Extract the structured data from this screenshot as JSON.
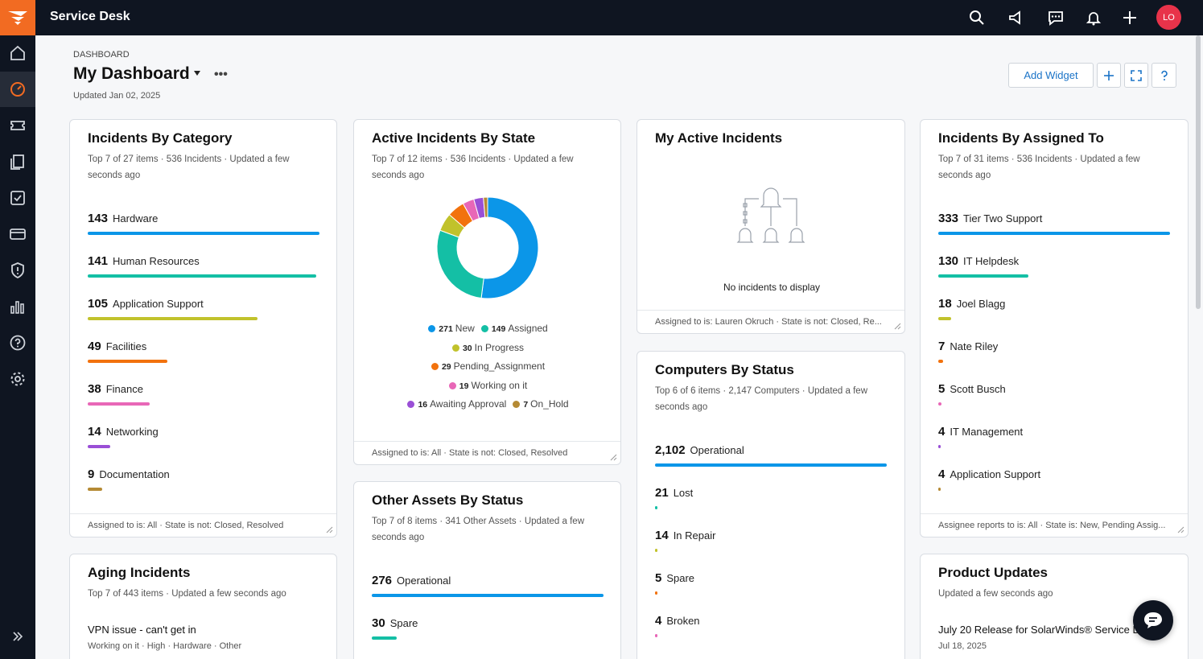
{
  "app": {
    "title": "Service Desk",
    "avatar_initials": "LO"
  },
  "header": {
    "breadcrumb": "DASHBOARD",
    "title": "My Dashboard",
    "more": "•••",
    "updated": "Updated Jan 02, 2025",
    "add_widget_label": "Add Widget"
  },
  "colors": {
    "accent": "#f26b22",
    "nav_bg": "#0f1521",
    "link": "#1a73c7",
    "blue": "#0b96e8",
    "teal": "#14bfa5",
    "olive": "#c1c22b",
    "orange": "#f2720d",
    "pink": "#e867b7",
    "purple": "#9a4fd6",
    "brown": "#b58a34"
  },
  "widgets": {
    "incidents_by_category": {
      "title": "Incidents By Category",
      "subtitle": "Top 7 of 27 items · 536 Incidents · Updated a few seconds ago",
      "rows": [
        {
          "value": "143",
          "label": "Hardware",
          "fraction": 1.0,
          "color": "#0b96e8"
        },
        {
          "value": "141",
          "label": "Human Resources",
          "fraction": 0.986,
          "color": "#14bfa5"
        },
        {
          "value": "105",
          "label": "Application Support",
          "fraction": 0.734,
          "color": "#c1c22b"
        },
        {
          "value": "49",
          "label": "Facilities",
          "fraction": 0.343,
          "color": "#f2720d"
        },
        {
          "value": "38",
          "label": "Finance",
          "fraction": 0.266,
          "color": "#e867b7"
        },
        {
          "value": "14",
          "label": "Networking",
          "fraction": 0.098,
          "color": "#9a4fd6"
        },
        {
          "value": "9",
          "label": "Documentation",
          "fraction": 0.063,
          "color": "#b58a34"
        }
      ],
      "footer": "Assigned to is: All · State is not: Closed, Resolved"
    },
    "active_by_state": {
      "title": "Active Incidents By State",
      "subtitle": "Top 7 of 12 items · 536 Incidents · Updated a few seconds ago",
      "footer": "Assigned to is: All · State is not: Closed, Resolved"
    },
    "my_active": {
      "title": "My Active Incidents",
      "empty_text": "No incidents to display",
      "footer": "Assigned to is: Lauren Okruch · State is not: Closed, Re..."
    },
    "by_assigned_to": {
      "title": "Incidents By Assigned To",
      "subtitle": "Top 7 of 31 items · 536 Incidents · Updated a few seconds ago",
      "rows": [
        {
          "value": "333",
          "label": "Tier Two Support",
          "fraction": 1.0,
          "color": "#0b96e8"
        },
        {
          "value": "130",
          "label": "IT Helpdesk",
          "fraction": 0.39,
          "color": "#14bfa5"
        },
        {
          "value": "18",
          "label": "Joel Blagg",
          "fraction": 0.054,
          "color": "#c1c22b"
        },
        {
          "value": "7",
          "label": "Nate Riley",
          "fraction": 0.021,
          "color": "#f2720d"
        },
        {
          "value": "5",
          "label": "Scott Busch",
          "fraction": 0.015,
          "color": "#e867b7"
        },
        {
          "value": "4",
          "label": "IT Management",
          "fraction": 0.012,
          "color": "#9a4fd6"
        },
        {
          "value": "4",
          "label": "Application Support",
          "fraction": 0.012,
          "color": "#b58a34"
        }
      ],
      "footer": "Assignee reports to is: All · State is: New, Pending Assig..."
    },
    "computers_by_status": {
      "title": "Computers By Status",
      "subtitle": "Top 6 of 6 items · 2,147 Computers · Updated a few seconds ago",
      "rows": [
        {
          "value": "2,102",
          "label": "Operational",
          "fraction": 1.0,
          "color": "#0b96e8"
        },
        {
          "value": "21",
          "label": "Lost",
          "fraction": 0.01,
          "color": "#14bfa5"
        },
        {
          "value": "14",
          "label": "In Repair",
          "fraction": 0.007,
          "color": "#c1c22b"
        },
        {
          "value": "5",
          "label": "Spare",
          "fraction": 0.002,
          "color": "#f2720d"
        },
        {
          "value": "4",
          "label": "Broken",
          "fraction": 0.002,
          "color": "#e867b7"
        }
      ]
    },
    "other_assets": {
      "title": "Other Assets By Status",
      "subtitle": "Top 7 of 8 items · 341 Other Assets · Updated a few seconds ago",
      "rows": [
        {
          "value": "276",
          "label": "Operational",
          "fraction": 1.0,
          "color": "#0b96e8"
        },
        {
          "value": "30",
          "label": "Spare",
          "fraction": 0.109,
          "color": "#14bfa5"
        }
      ]
    },
    "aging": {
      "title": "Aging Incidents",
      "subtitle": "Top 7 of 443 items · Updated a few seconds ago",
      "item_title": "VPN issue - can't get in",
      "item_meta": "Working on it · High · Hardware · Other"
    },
    "product_updates": {
      "title": "Product Updates",
      "subtitle": "Updated a few seconds ago",
      "item_title": "July 20 Release for SolarWinds® Service Desk",
      "item_date": "Jul 18, 2025"
    }
  },
  "chart_data": {
    "type": "pie",
    "categories": [
      "New",
      "Assigned",
      "In Progress",
      "Pending_Assignment",
      "Working on it",
      "Awaiting Approval",
      "On_Hold"
    ],
    "values": [
      271,
      149,
      30,
      29,
      19,
      16,
      7
    ],
    "colors": [
      "#0b96e8",
      "#14bfa5",
      "#c1c22b",
      "#f2720d",
      "#e867b7",
      "#9a4fd6",
      "#b58a34"
    ],
    "legend_position": "bottom",
    "donut": true
  }
}
